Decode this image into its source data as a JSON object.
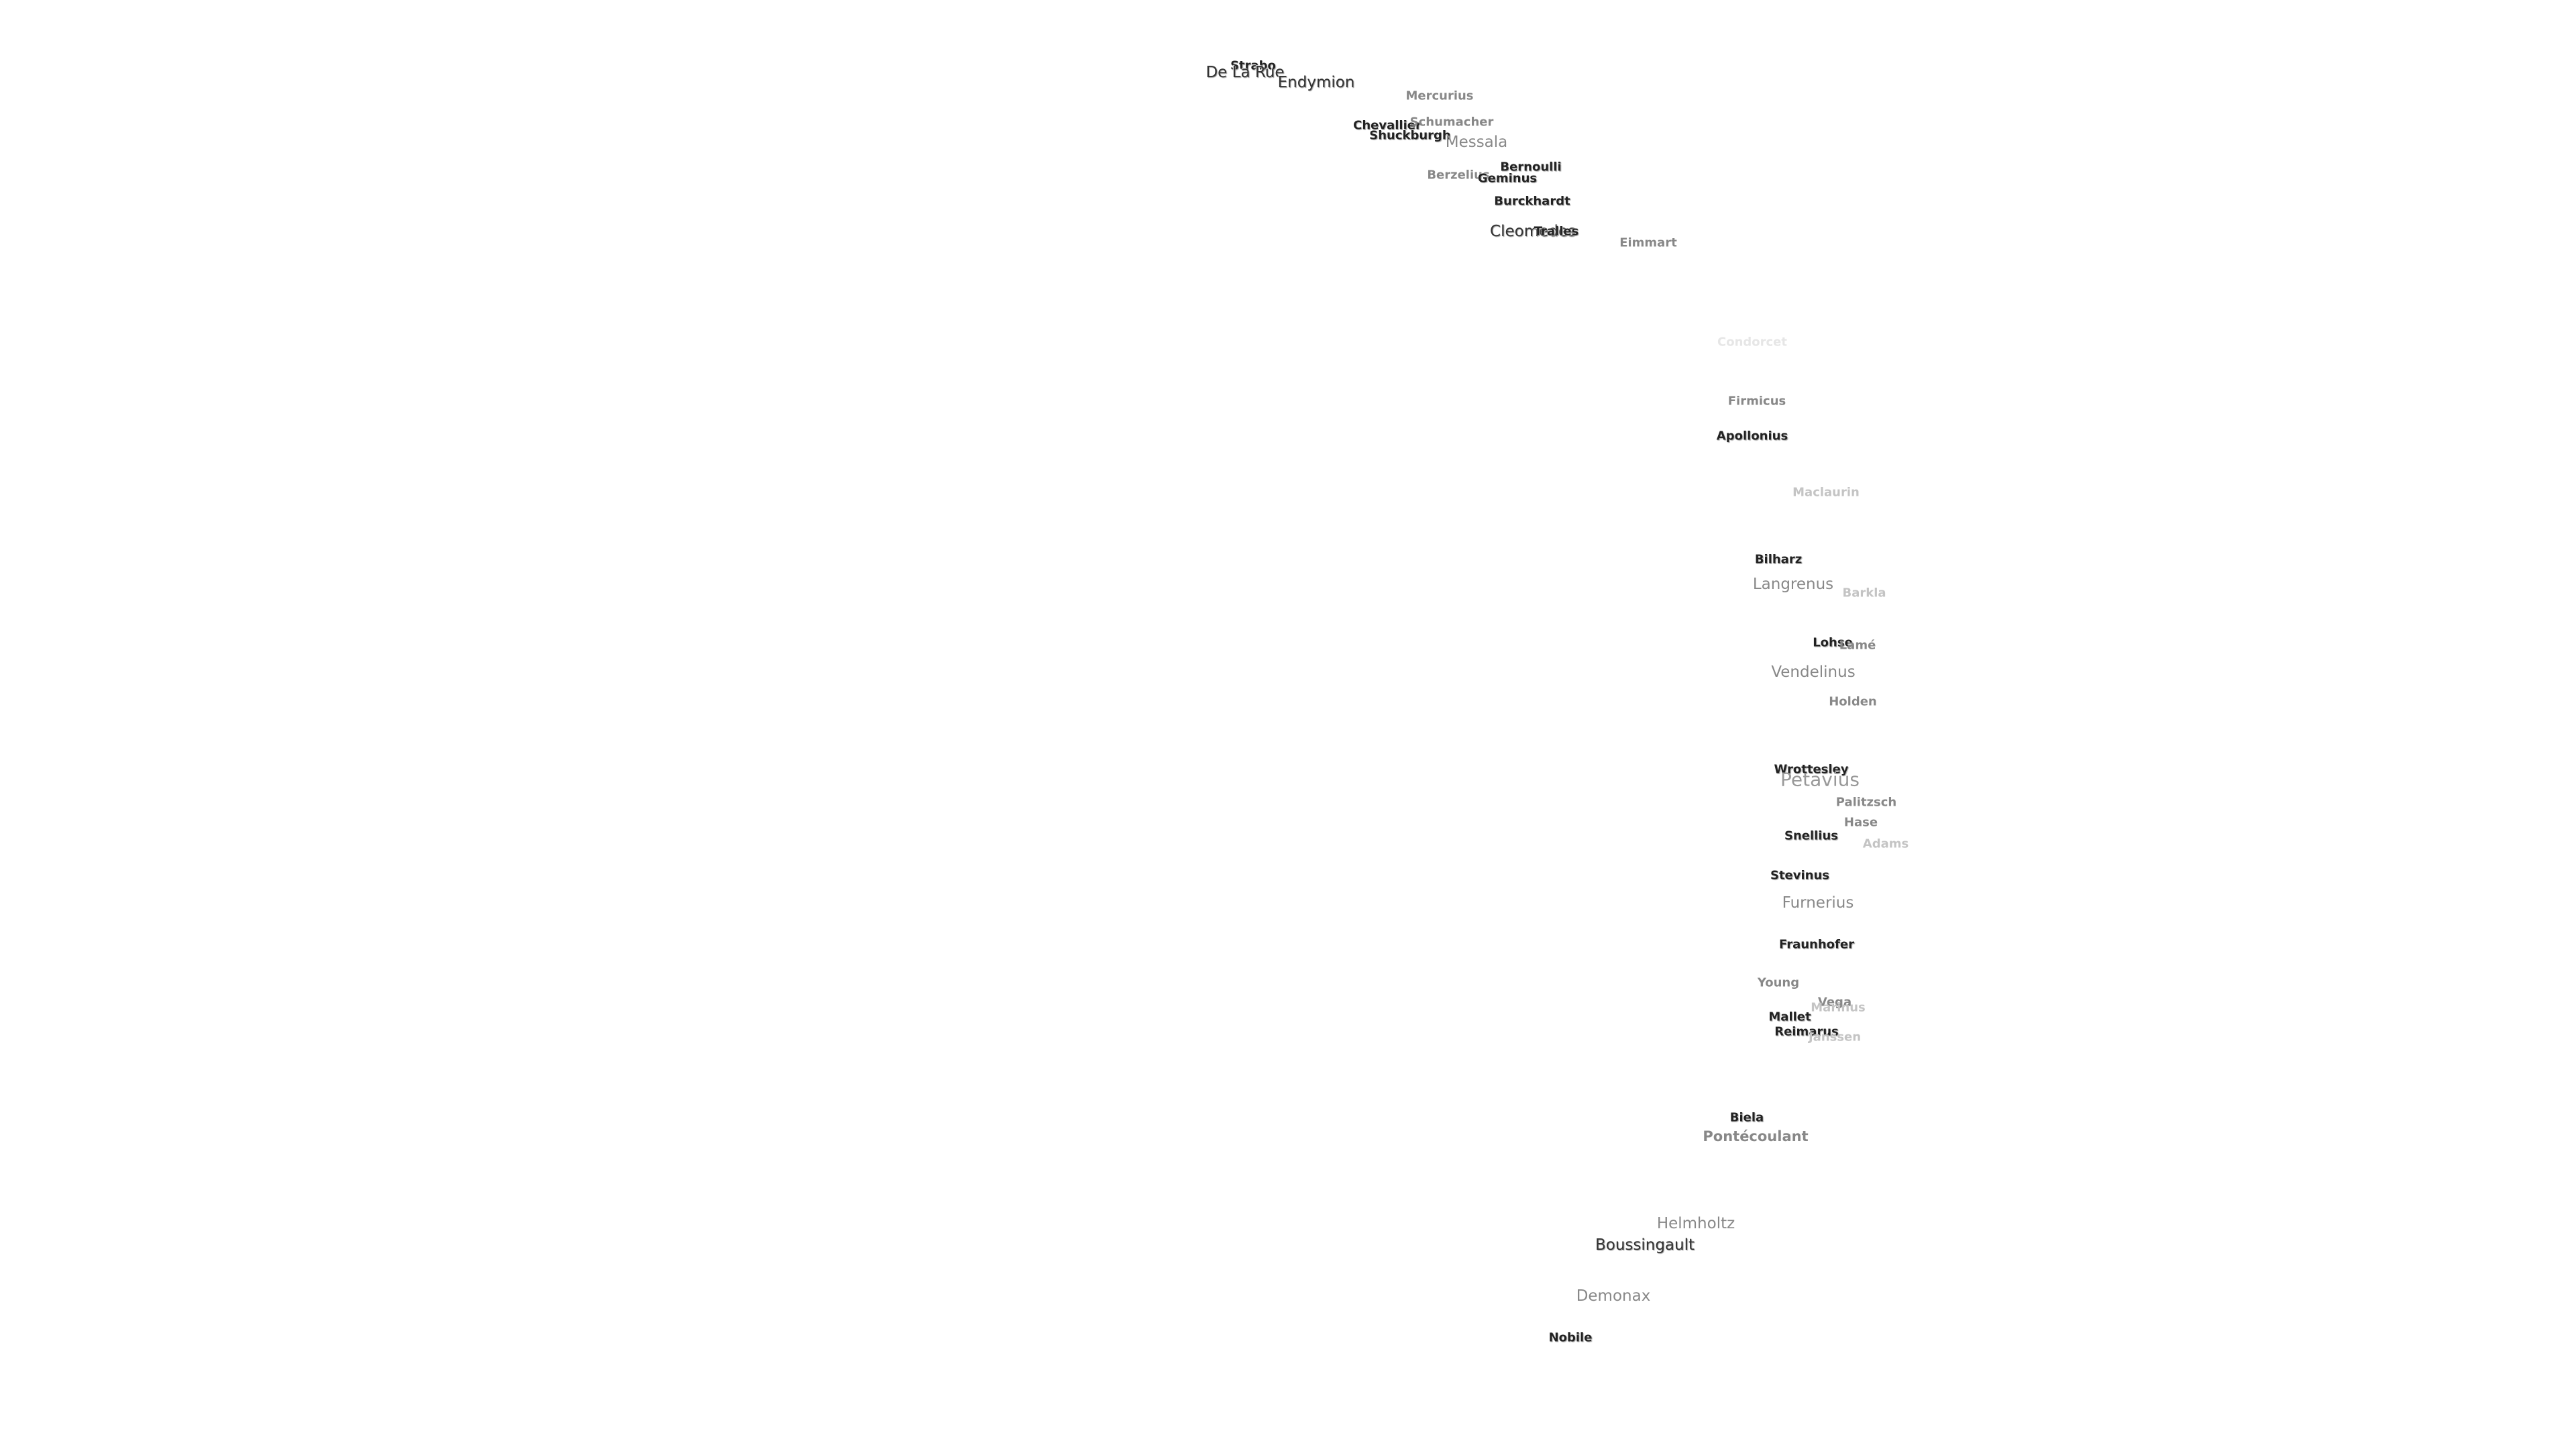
{
  "labels": [
    "Strabo",
    "De La Rue",
    "Endymion",
    "Mercurius",
    "Chevallier",
    "Schumacher",
    "Shuckburgh",
    "Messala",
    "Bernoulli",
    "Berzelius",
    "Geminus",
    "Burckhardt",
    "Cleomedes",
    "Tralles",
    "Eimmart",
    "Condorcet",
    "Firmicus",
    "Apollonius",
    "Maclaurin",
    "Bilharz",
    "Langrenus",
    "Barkla",
    "Lohse",
    "Lamé",
    "Vendelinus",
    "Holden",
    "Wrottesley",
    "Petavius",
    "Palitzsch",
    "Hase",
    "Snellius",
    "Adams",
    "Stevinus",
    "Furnerius",
    "Fraunhofer",
    "Young",
    "Vega",
    "Marinus",
    "Mallet",
    "Reimarus",
    "Janssen",
    "Biela",
    "Pontécoulant",
    "Helmholtz",
    "Boussingault",
    "Demonax",
    "Nobile"
  ]
}
